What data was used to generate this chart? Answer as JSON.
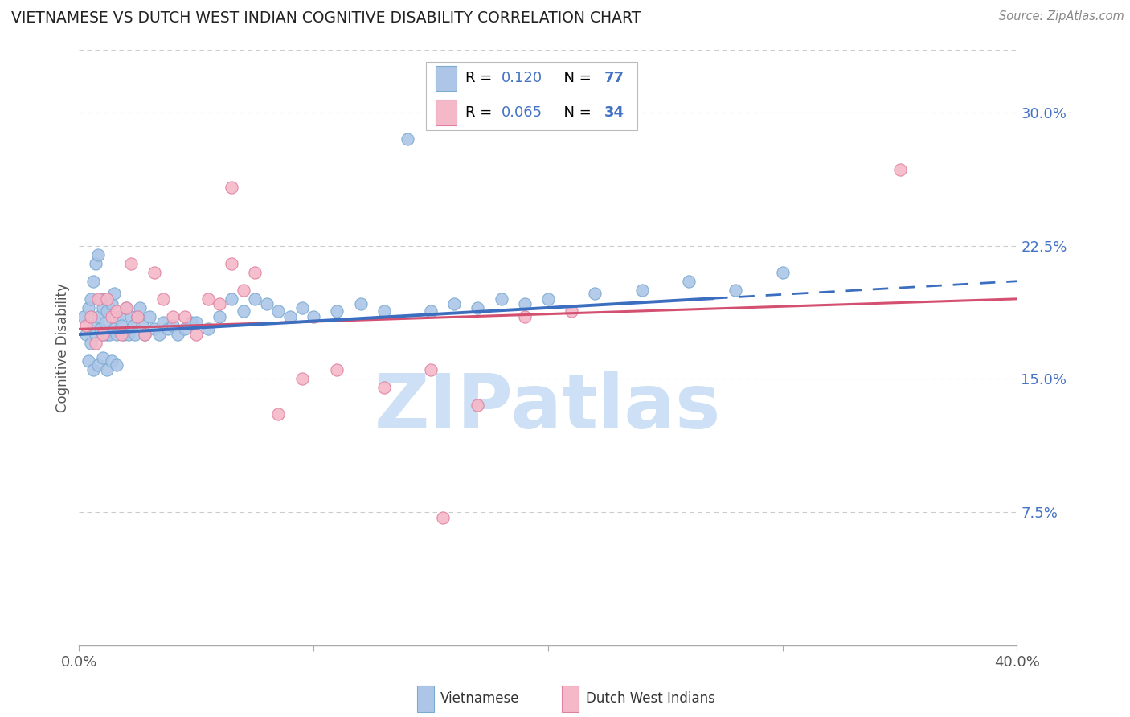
{
  "title": "VIETNAMESE VS DUTCH WEST INDIAN COGNITIVE DISABILITY CORRELATION CHART",
  "source": "Source: ZipAtlas.com",
  "ylabel": "Cognitive Disability",
  "ytick_labels": [
    "7.5%",
    "15.0%",
    "22.5%",
    "30.0%"
  ],
  "ytick_values": [
    0.075,
    0.15,
    0.225,
    0.3
  ],
  "xlim": [
    0.0,
    0.4
  ],
  "ylim": [
    0.0,
    0.335
  ],
  "legend1_R": "0.120",
  "legend1_N": "77",
  "legend2_R": "0.065",
  "legend2_N": "34",
  "color_viet_fill": "#adc6e8",
  "color_viet_edge": "#7aaad0",
  "color_dutch_fill": "#f5b8c8",
  "color_dutch_edge": "#e080a0",
  "color_line_viet": "#3c6ebf",
  "color_line_dutch": "#d45070",
  "color_yticks": "#4472c4",
  "color_grid": "#cccccc",
  "watermark_color": "#cde0f5",
  "bottom_label_viet": "Vietnamese",
  "bottom_label_dutch": "Dutch West Indians",
  "viet_x": [
    0.002,
    0.003,
    0.004,
    0.005,
    0.005,
    0.006,
    0.006,
    0.007,
    0.007,
    0.008,
    0.008,
    0.009,
    0.009,
    0.01,
    0.01,
    0.011,
    0.012,
    0.012,
    0.013,
    0.014,
    0.015,
    0.015,
    0.016,
    0.017,
    0.018,
    0.019,
    0.02,
    0.021,
    0.022,
    0.023,
    0.024,
    0.025,
    0.026,
    0.027,
    0.028,
    0.03,
    0.032,
    0.034,
    0.036,
    0.038,
    0.04,
    0.042,
    0.045,
    0.048,
    0.05,
    0.055,
    0.06,
    0.065,
    0.07,
    0.075,
    0.08,
    0.085,
    0.09,
    0.095,
    0.1,
    0.11,
    0.12,
    0.13,
    0.14,
    0.15,
    0.16,
    0.17,
    0.18,
    0.19,
    0.2,
    0.22,
    0.24,
    0.26,
    0.28,
    0.3,
    0.004,
    0.006,
    0.008,
    0.01,
    0.012,
    0.014,
    0.016
  ],
  "viet_y": [
    0.185,
    0.175,
    0.19,
    0.17,
    0.195,
    0.18,
    0.205,
    0.175,
    0.215,
    0.185,
    0.22,
    0.178,
    0.195,
    0.175,
    0.19,
    0.182,
    0.175,
    0.188,
    0.175,
    0.192,
    0.178,
    0.198,
    0.175,
    0.185,
    0.18,
    0.175,
    0.19,
    0.175,
    0.185,
    0.18,
    0.175,
    0.185,
    0.19,
    0.18,
    0.175,
    0.185,
    0.178,
    0.175,
    0.182,
    0.178,
    0.18,
    0.175,
    0.178,
    0.182,
    0.182,
    0.178,
    0.185,
    0.195,
    0.188,
    0.195,
    0.192,
    0.188,
    0.185,
    0.19,
    0.185,
    0.188,
    0.192,
    0.188,
    0.285,
    0.188,
    0.192,
    0.19,
    0.195,
    0.192,
    0.195,
    0.198,
    0.2,
    0.205,
    0.2,
    0.21,
    0.16,
    0.155,
    0.158,
    0.162,
    0.155,
    0.16,
    0.158
  ],
  "dutch_x": [
    0.003,
    0.005,
    0.007,
    0.008,
    0.01,
    0.012,
    0.014,
    0.016,
    0.018,
    0.02,
    0.022,
    0.025,
    0.028,
    0.032,
    0.036,
    0.04,
    0.045,
    0.05,
    0.055,
    0.06,
    0.065,
    0.07,
    0.075,
    0.085,
    0.095,
    0.11,
    0.13,
    0.15,
    0.17,
    0.19,
    0.21,
    0.155,
    0.35,
    0.065
  ],
  "dutch_y": [
    0.18,
    0.185,
    0.17,
    0.195,
    0.175,
    0.195,
    0.185,
    0.188,
    0.175,
    0.19,
    0.215,
    0.185,
    0.175,
    0.21,
    0.195,
    0.185,
    0.185,
    0.175,
    0.195,
    0.192,
    0.215,
    0.2,
    0.21,
    0.13,
    0.15,
    0.155,
    0.145,
    0.155,
    0.135,
    0.185,
    0.188,
    0.072,
    0.268,
    0.258
  ],
  "line_viet_x0": 0.0,
  "line_viet_x1": 0.4,
  "line_viet_y0": 0.175,
  "line_viet_y1": 0.205,
  "line_dutch_x0": 0.0,
  "line_dutch_x1": 0.4,
  "line_dutch_y0": 0.178,
  "line_dutch_y1": 0.195,
  "line_solid_end": 0.27
}
